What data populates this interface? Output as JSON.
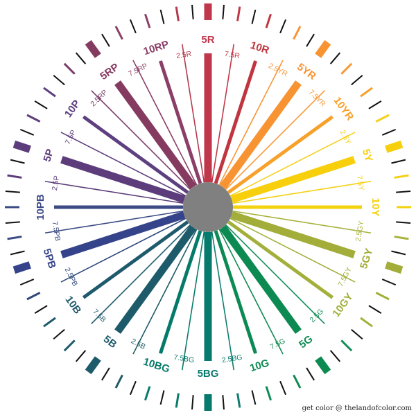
{
  "credit": "get color @ thelandofcolor.com",
  "center_color": "#808080",
  "hues": [
    {
      "label": "5R",
      "angle": 0,
      "major": true,
      "outer": "bar",
      "color": "#c0364a"
    },
    {
      "label": "7.5R",
      "angle": 9,
      "major": false,
      "outer": "tick",
      "color": "#c03848"
    },
    {
      "label": "10R",
      "angle": 18,
      "major": true,
      "outer": "tick",
      "color": "#c0353f"
    },
    {
      "label": "2.5YR",
      "angle": 27,
      "major": false,
      "outer": "tick",
      "color": "#f79636"
    },
    {
      "label": "5YR",
      "angle": 36,
      "major": true,
      "outer": "bar",
      "color": "#f89332"
    },
    {
      "label": "7.5YR",
      "angle": 45,
      "major": false,
      "outer": "tick",
      "color": "#f89a3a"
    },
    {
      "label": "10YR",
      "angle": 54,
      "major": true,
      "outer": "tick",
      "color": "#f7a02a"
    },
    {
      "label": "2.5Y",
      "angle": 63,
      "major": false,
      "outer": "tick",
      "color": "#f5d020"
    },
    {
      "label": "5Y",
      "angle": 72,
      "major": true,
      "outer": "bar",
      "color": "#f7cf0c"
    },
    {
      "label": "7.5Y",
      "angle": 81,
      "major": false,
      "outer": "tick",
      "color": "#f3d012"
    },
    {
      "label": "10Y",
      "angle": 90,
      "major": true,
      "outer": "tick",
      "color": "#f3d20e"
    },
    {
      "label": "2.5GY",
      "angle": 99,
      "major": false,
      "outer": "tick",
      "color": "#a8b23c"
    },
    {
      "label": "5GY",
      "angle": 108,
      "major": true,
      "outer": "bar",
      "color": "#a2ad3a"
    },
    {
      "label": "7.5GY",
      "angle": 117,
      "major": false,
      "outer": "tick",
      "color": "#a2b03a"
    },
    {
      "label": "10GY",
      "angle": 126,
      "major": true,
      "outer": "tick",
      "color": "#a2b03a"
    },
    {
      "label": "2.5G",
      "angle": 135,
      "major": false,
      "outer": "tick",
      "color": "#138d58"
    },
    {
      "label": "5G",
      "angle": 144,
      "major": true,
      "outer": "bar",
      "color": "#0d8a52"
    },
    {
      "label": "7.5G",
      "angle": 153,
      "major": false,
      "outer": "tick",
      "color": "#108a52"
    },
    {
      "label": "10G",
      "angle": 162,
      "major": true,
      "outer": "tick",
      "color": "#0c8a54"
    },
    {
      "label": "2.5BG",
      "angle": 171,
      "major": false,
      "outer": "tick",
      "color": "#0e7d6e"
    },
    {
      "label": "5BG",
      "angle": 180,
      "major": true,
      "outer": "bar",
      "color": "#077a6e"
    },
    {
      "label": "7.5BG",
      "angle": 189,
      "major": false,
      "outer": "tick",
      "color": "#0a7a6a"
    },
    {
      "label": "10BG",
      "angle": 198,
      "major": true,
      "outer": "tick",
      "color": "#067a6a"
    },
    {
      "label": "2.5B",
      "angle": 207,
      "major": false,
      "outer": "tick",
      "color": "#1f5c66"
    },
    {
      "label": "5B",
      "angle": 216,
      "major": true,
      "outer": "bar",
      "color": "#1d5a6a"
    },
    {
      "label": "7.5B",
      "angle": 225,
      "major": false,
      "outer": "tick",
      "color": "#1d5a6a"
    },
    {
      "label": "10B",
      "angle": 234,
      "major": true,
      "outer": "tick",
      "color": "#1f5a6c"
    },
    {
      "label": "2.5PB",
      "angle": 243,
      "major": false,
      "outer": "tick",
      "color": "#2f4a7a"
    },
    {
      "label": "5PB",
      "angle": 252,
      "major": true,
      "outer": "bar",
      "color": "#35448a"
    },
    {
      "label": "7.5PB",
      "angle": 261,
      "major": false,
      "outer": "tick",
      "color": "#3a4a82"
    },
    {
      "label": "10PB",
      "angle": 270,
      "major": true,
      "outer": "tick",
      "color": "#3c4a86"
    },
    {
      "label": "2.5P",
      "angle": 279,
      "major": false,
      "outer": "tick",
      "color": "#5a3b78"
    },
    {
      "label": "5P",
      "angle": 288,
      "major": true,
      "outer": "bar",
      "color": "#5c3c7a"
    },
    {
      "label": "7.5P",
      "angle": 297,
      "major": false,
      "outer": "tick",
      "color": "#5e3e7c"
    },
    {
      "label": "10P",
      "angle": 306,
      "major": true,
      "outer": "tick",
      "color": "#5e3f80"
    },
    {
      "label": "2.5RP",
      "angle": 315,
      "major": false,
      "outer": "tick",
      "color": "#7a3c6a"
    },
    {
      "label": "5RP",
      "angle": 324,
      "major": true,
      "outer": "bar",
      "color": "#853a60"
    },
    {
      "label": "7.5RP",
      "angle": 333,
      "major": false,
      "outer": "tick",
      "color": "#8a3f66"
    },
    {
      "label": "10RP",
      "angle": 342,
      "major": true,
      "outer": "tick",
      "color": "#8a3e68"
    },
    {
      "label": "2.5R",
      "angle": 351,
      "major": false,
      "outer": "tick",
      "color": "#b43a4e"
    }
  ]
}
